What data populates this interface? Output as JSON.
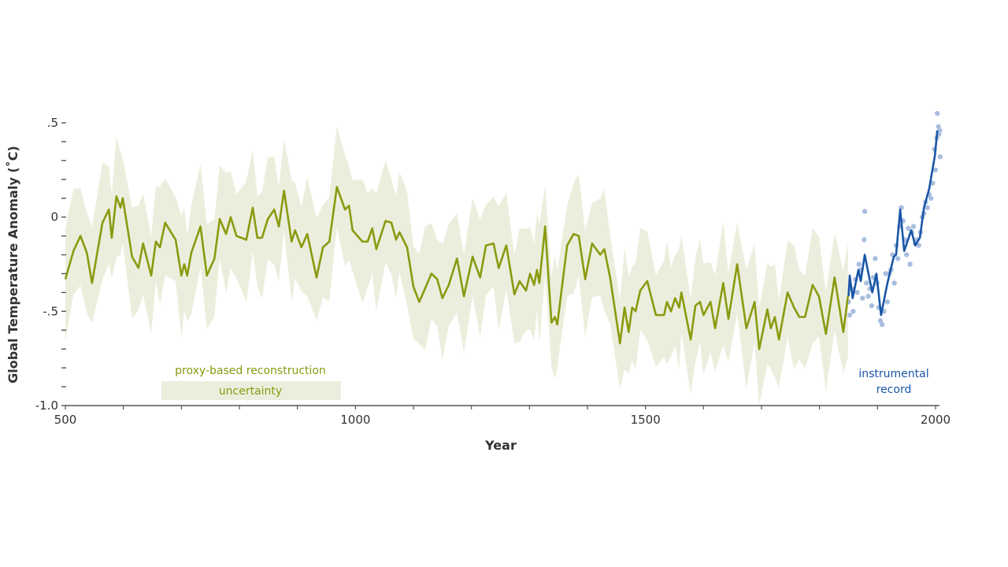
{
  "chart_data": {
    "type": "line",
    "title": "",
    "xlabel": "Year",
    "ylabel": "Global Temperature Anomaly (˚C)",
    "xlim": [
      500,
      2000
    ],
    "ylim": [
      -1.0,
      0.5
    ],
    "x_ticks": [
      500,
      1000,
      1500,
      2000
    ],
    "x_tick_labels": [
      "500",
      "1000",
      "1500",
      "2000"
    ],
    "y_ticks": [
      0.5,
      0,
      -0.5,
      -1.0
    ],
    "y_tick_labels": [
      ".5",
      "0",
      "-.5",
      "-1.0"
    ],
    "grid": false,
    "colors": {
      "proxy": "#8a9a10",
      "uncertainty": "#eceedd",
      "instrumental": "#1a56a6",
      "annual": "#a9bedf"
    },
    "legend": {
      "proxy_label": "proxy-based reconstruction",
      "uncertainty_label": "uncertainty",
      "instrumental_label_1": "instrumental",
      "instrumental_label_2": "record",
      "placement": "bottom"
    },
    "uncertainty_halfwidth": 0.27,
    "series": [
      {
        "name": "proxy-based reconstruction",
        "points": [
          [
            500,
            -0.33
          ],
          [
            514,
            -0.18
          ],
          [
            526,
            -0.1
          ],
          [
            537,
            -0.19
          ],
          [
            546,
            -0.35
          ],
          [
            564,
            -0.03
          ],
          [
            575,
            0.04
          ],
          [
            580,
            -0.11
          ],
          [
            588,
            0.11
          ],
          [
            595,
            0.05
          ],
          [
            599,
            0.1
          ],
          [
            615,
            -0.21
          ],
          [
            626,
            -0.27
          ],
          [
            634,
            -0.14
          ],
          [
            648,
            -0.31
          ],
          [
            656,
            -0.13
          ],
          [
            663,
            -0.16
          ],
          [
            672,
            -0.03
          ],
          [
            690,
            -0.12
          ],
          [
            700,
            -0.31
          ],
          [
            705,
            -0.25
          ],
          [
            710,
            -0.31
          ],
          [
            717,
            -0.19
          ],
          [
            733,
            -0.05
          ],
          [
            744,
            -0.31
          ],
          [
            757,
            -0.22
          ],
          [
            766,
            -0.01
          ],
          [
            777,
            -0.09
          ],
          [
            785,
            0.0
          ],
          [
            795,
            -0.1
          ],
          [
            812,
            -0.12
          ],
          [
            823,
            0.05
          ],
          [
            831,
            -0.11
          ],
          [
            839,
            -0.11
          ],
          [
            849,
            -0.01
          ],
          [
            860,
            0.04
          ],
          [
            868,
            -0.05
          ],
          [
            877,
            0.14
          ],
          [
            890,
            -0.13
          ],
          [
            896,
            -0.07
          ],
          [
            907,
            -0.16
          ],
          [
            917,
            -0.09
          ],
          [
            933,
            -0.32
          ],
          [
            944,
            -0.16
          ],
          [
            955,
            -0.13
          ],
          [
            968,
            0.16
          ],
          [
            982,
            0.04
          ],
          [
            989,
            0.06
          ],
          [
            995,
            -0.07
          ],
          [
            1012,
            -0.13
          ],
          [
            1021,
            -0.13
          ],
          [
            1029,
            -0.06
          ],
          [
            1036,
            -0.17
          ],
          [
            1052,
            -0.02
          ],
          [
            1062,
            -0.03
          ],
          [
            1070,
            -0.12
          ],
          [
            1076,
            -0.08
          ],
          [
            1089,
            -0.16
          ],
          [
            1100,
            -0.37
          ],
          [
            1110,
            -0.45
          ],
          [
            1120,
            -0.38
          ],
          [
            1131,
            -0.3
          ],
          [
            1141,
            -0.33
          ],
          [
            1150,
            -0.43
          ],
          [
            1161,
            -0.36
          ],
          [
            1175,
            -0.22
          ],
          [
            1187,
            -0.42
          ],
          [
            1202,
            -0.21
          ],
          [
            1215,
            -0.32
          ],
          [
            1225,
            -0.15
          ],
          [
            1238,
            -0.14
          ],
          [
            1247,
            -0.27
          ],
          [
            1260,
            -0.15
          ],
          [
            1274,
            -0.41
          ],
          [
            1283,
            -0.34
          ],
          [
            1294,
            -0.39
          ],
          [
            1301,
            -0.3
          ],
          [
            1308,
            -0.36
          ],
          [
            1313,
            -0.28
          ],
          [
            1317,
            -0.35
          ],
          [
            1327,
            -0.05
          ],
          [
            1338,
            -0.56
          ],
          [
            1344,
            -0.53
          ],
          [
            1348,
            -0.57
          ],
          [
            1365,
            -0.15
          ],
          [
            1376,
            -0.09
          ],
          [
            1385,
            -0.1
          ],
          [
            1396,
            -0.33
          ],
          [
            1408,
            -0.14
          ],
          [
            1422,
            -0.2
          ],
          [
            1429,
            -0.17
          ],
          [
            1439,
            -0.32
          ],
          [
            1456,
            -0.67
          ],
          [
            1464,
            -0.48
          ],
          [
            1471,
            -0.61
          ],
          [
            1477,
            -0.48
          ],
          [
            1483,
            -0.5
          ],
          [
            1491,
            -0.39
          ],
          [
            1503,
            -0.34
          ],
          [
            1518,
            -0.52
          ],
          [
            1532,
            -0.52
          ],
          [
            1537,
            -0.45
          ],
          [
            1544,
            -0.5
          ],
          [
            1551,
            -0.43
          ],
          [
            1558,
            -0.48
          ],
          [
            1562,
            -0.4
          ],
          [
            1578,
            -0.65
          ],
          [
            1586,
            -0.47
          ],
          [
            1594,
            -0.45
          ],
          [
            1600,
            -0.52
          ],
          [
            1612,
            -0.45
          ],
          [
            1620,
            -0.59
          ],
          [
            1634,
            -0.35
          ],
          [
            1643,
            -0.54
          ],
          [
            1658,
            -0.25
          ],
          [
            1674,
            -0.59
          ],
          [
            1688,
            -0.45
          ],
          [
            1696,
            -0.7
          ],
          [
            1710,
            -0.49
          ],
          [
            1716,
            -0.59
          ],
          [
            1723,
            -0.53
          ],
          [
            1730,
            -0.65
          ],
          [
            1745,
            -0.4
          ],
          [
            1756,
            -0.48
          ],
          [
            1765,
            -0.53
          ],
          [
            1775,
            -0.53
          ],
          [
            1788,
            -0.36
          ],
          [
            1799,
            -0.42
          ],
          [
            1811,
            -0.62
          ],
          [
            1826,
            -0.32
          ],
          [
            1841,
            -0.61
          ],
          [
            1849,
            -0.42
          ]
        ]
      },
      {
        "name": "instrumental record",
        "points": [
          [
            1850,
            -0.42
          ],
          [
            1852,
            -0.31
          ],
          [
            1857,
            -0.43
          ],
          [
            1867,
            -0.28
          ],
          [
            1871,
            -0.34
          ],
          [
            1878,
            -0.2
          ],
          [
            1885,
            -0.31
          ],
          [
            1891,
            -0.4
          ],
          [
            1898,
            -0.3
          ],
          [
            1906,
            -0.52
          ],
          [
            1917,
            -0.35
          ],
          [
            1928,
            -0.21
          ],
          [
            1932,
            -0.2
          ],
          [
            1939,
            0.04
          ],
          [
            1946,
            -0.18
          ],
          [
            1958,
            -0.07
          ],
          [
            1965,
            -0.15
          ],
          [
            1973,
            -0.11
          ],
          [
            1980,
            0.05
          ],
          [
            1989,
            0.15
          ],
          [
            1999,
            0.33
          ],
          [
            2003,
            0.46
          ]
        ]
      },
      {
        "name": "instrumental annual",
        "points": [
          [
            1850,
            -0.45
          ],
          [
            1852,
            -0.52
          ],
          [
            1855,
            -0.38
          ],
          [
            1858,
            -0.5
          ],
          [
            1862,
            -0.33
          ],
          [
            1865,
            -0.4
          ],
          [
            1868,
            -0.25
          ],
          [
            1871,
            -0.28
          ],
          [
            1874,
            -0.43
          ],
          [
            1877,
            -0.12
          ],
          [
            1878,
            0.03
          ],
          [
            1881,
            -0.35
          ],
          [
            1884,
            -0.42
          ],
          [
            1887,
            -0.38
          ],
          [
            1890,
            -0.47
          ],
          [
            1893,
            -0.32
          ],
          [
            1896,
            -0.22
          ],
          [
            1899,
            -0.35
          ],
          [
            1902,
            -0.48
          ],
          [
            1905,
            -0.55
          ],
          [
            1908,
            -0.57
          ],
          [
            1911,
            -0.5
          ],
          [
            1914,
            -0.3
          ],
          [
            1917,
            -0.45
          ],
          [
            1920,
            -0.3
          ],
          [
            1923,
            -0.28
          ],
          [
            1926,
            -0.2
          ],
          [
            1929,
            -0.35
          ],
          [
            1932,
            -0.15
          ],
          [
            1935,
            -0.22
          ],
          [
            1938,
            -0.05
          ],
          [
            1941,
            0.05
          ],
          [
            1944,
            -0.02
          ],
          [
            1947,
            -0.12
          ],
          [
            1950,
            -0.2
          ],
          [
            1953,
            -0.06
          ],
          [
            1956,
            -0.25
          ],
          [
            1959,
            -0.08
          ],
          [
            1962,
            -0.05
          ],
          [
            1965,
            -0.14
          ],
          [
            1968,
            -0.12
          ],
          [
            1971,
            -0.15
          ],
          [
            1974,
            -0.08
          ],
          [
            1977,
            0.0
          ],
          [
            1980,
            0.02
          ],
          [
            1983,
            0.08
          ],
          [
            1986,
            0.05
          ],
          [
            1989,
            0.12
          ],
          [
            1992,
            0.1
          ],
          [
            1995,
            0.18
          ],
          [
            1998,
            0.36
          ],
          [
            2000,
            0.25
          ],
          [
            2002,
            0.42
          ],
          [
            2003,
            0.55
          ],
          [
            2005,
            0.48
          ],
          [
            2006,
            0.44
          ],
          [
            2007,
            0.46
          ],
          [
            2008,
            0.32
          ]
        ]
      }
    ]
  }
}
